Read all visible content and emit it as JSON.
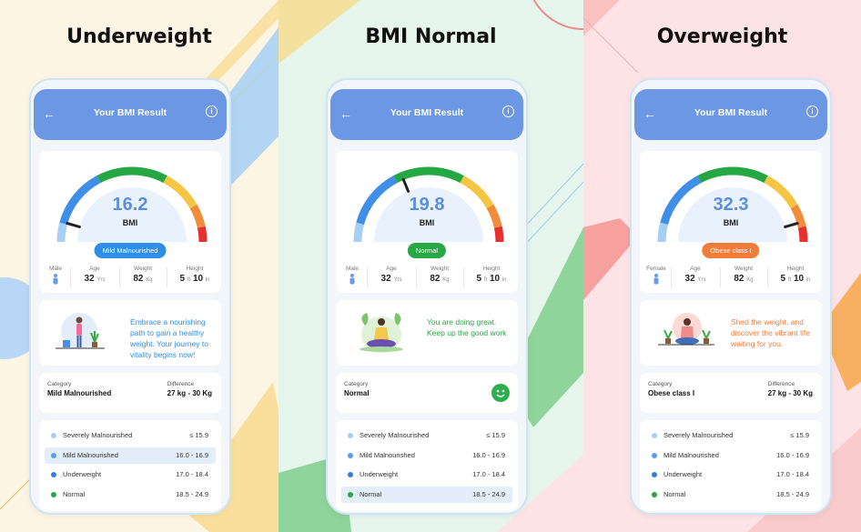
{
  "theme": {
    "accent": "#6b97e4",
    "gauge_colors": [
      "#a7cff5",
      "#3f8fe8",
      "#25a844",
      "#f6c543",
      "#f08c3a",
      "#e62f2f"
    ]
  },
  "screens": [
    {
      "panel_title": "Underweight",
      "app_title": "Your BMI Result",
      "back_icon": "arrow-left-icon",
      "info_icon": "info-icon",
      "bmi_value": "16.2",
      "bmi_label": "BMI",
      "pill_text": "Mild Malnourished",
      "pill_color": "#2f8ee8",
      "gender_label": "Male",
      "age_label": "Age",
      "age_value": "32",
      "age_unit": "Yrs",
      "weight_label": "Weight",
      "weight_value": "82",
      "weight_unit": "Kg",
      "height_label": "Height",
      "height_ft": "5",
      "height_ft_unit": "ft",
      "height_in": "10",
      "height_in_unit": "in",
      "message": "Embrace a nourishing path to gain a healthy weight. Your journey to vitality begins now!",
      "message_color": "#2f8ee8",
      "category_label": "Category",
      "category_value": "Mild Malnourished",
      "difference_label": "Difference",
      "difference_value": "27 kg - 30 Kg",
      "highlight_row": 1
    },
    {
      "panel_title": "BMI Normal",
      "app_title": "Your BMI Result",
      "back_icon": "arrow-left-icon",
      "info_icon": "info-icon",
      "bmi_value": "19.8",
      "bmi_label": "BMI",
      "pill_text": "Normal",
      "pill_color": "#28a745",
      "gender_label": "Male",
      "age_label": "Age",
      "age_value": "32",
      "age_unit": "Yrs",
      "weight_label": "Weight",
      "weight_value": "82",
      "weight_unit": "Kg",
      "height_label": "Height",
      "height_ft": "5",
      "height_ft_unit": "ft",
      "height_in": "10",
      "height_in_unit": "in",
      "message": "You are doing great. Keep up the good work",
      "message_color": "#28a745",
      "category_label": "Category",
      "category_value": "Normal",
      "difference_label": "",
      "difference_value": "",
      "highlight_row": 3
    },
    {
      "panel_title": "Overweight",
      "app_title": "Your BMI Result",
      "back_icon": "arrow-left-icon",
      "info_icon": "info-icon",
      "bmi_value": "32.3",
      "bmi_label": "BMI",
      "pill_text": "Obese class I",
      "pill_color": "#f07c3a",
      "gender_label": "Female",
      "age_label": "Age",
      "age_value": "32",
      "age_unit": "Yrs",
      "weight_label": "Weight",
      "weight_value": "82",
      "weight_unit": "Kg",
      "height_label": "Height",
      "height_ft": "5",
      "height_ft_unit": "ft",
      "height_in": "10",
      "height_in_unit": "in",
      "message": "Shed the weight, and discover the vibrant life waiting for you.",
      "message_color": "#f07c3a",
      "category_label": "Category",
      "category_value": "Obese class I",
      "difference_label": "Difference",
      "difference_value": "27 kg - 30 Kg",
      "highlight_row": -1
    }
  ],
  "categories": [
    {
      "name": "Severely Malnourished",
      "range": "≤ 15.9",
      "color": "#a7cff5"
    },
    {
      "name": "Mild Malnourished",
      "range": "16.0 - 16.9",
      "color": "#5b9ee8"
    },
    {
      "name": "Underweight",
      "range": "17.0 - 18.4",
      "color": "#2f80d8"
    },
    {
      "name": "Normal",
      "range": "18.5 - 24.9",
      "color": "#28a745"
    }
  ]
}
